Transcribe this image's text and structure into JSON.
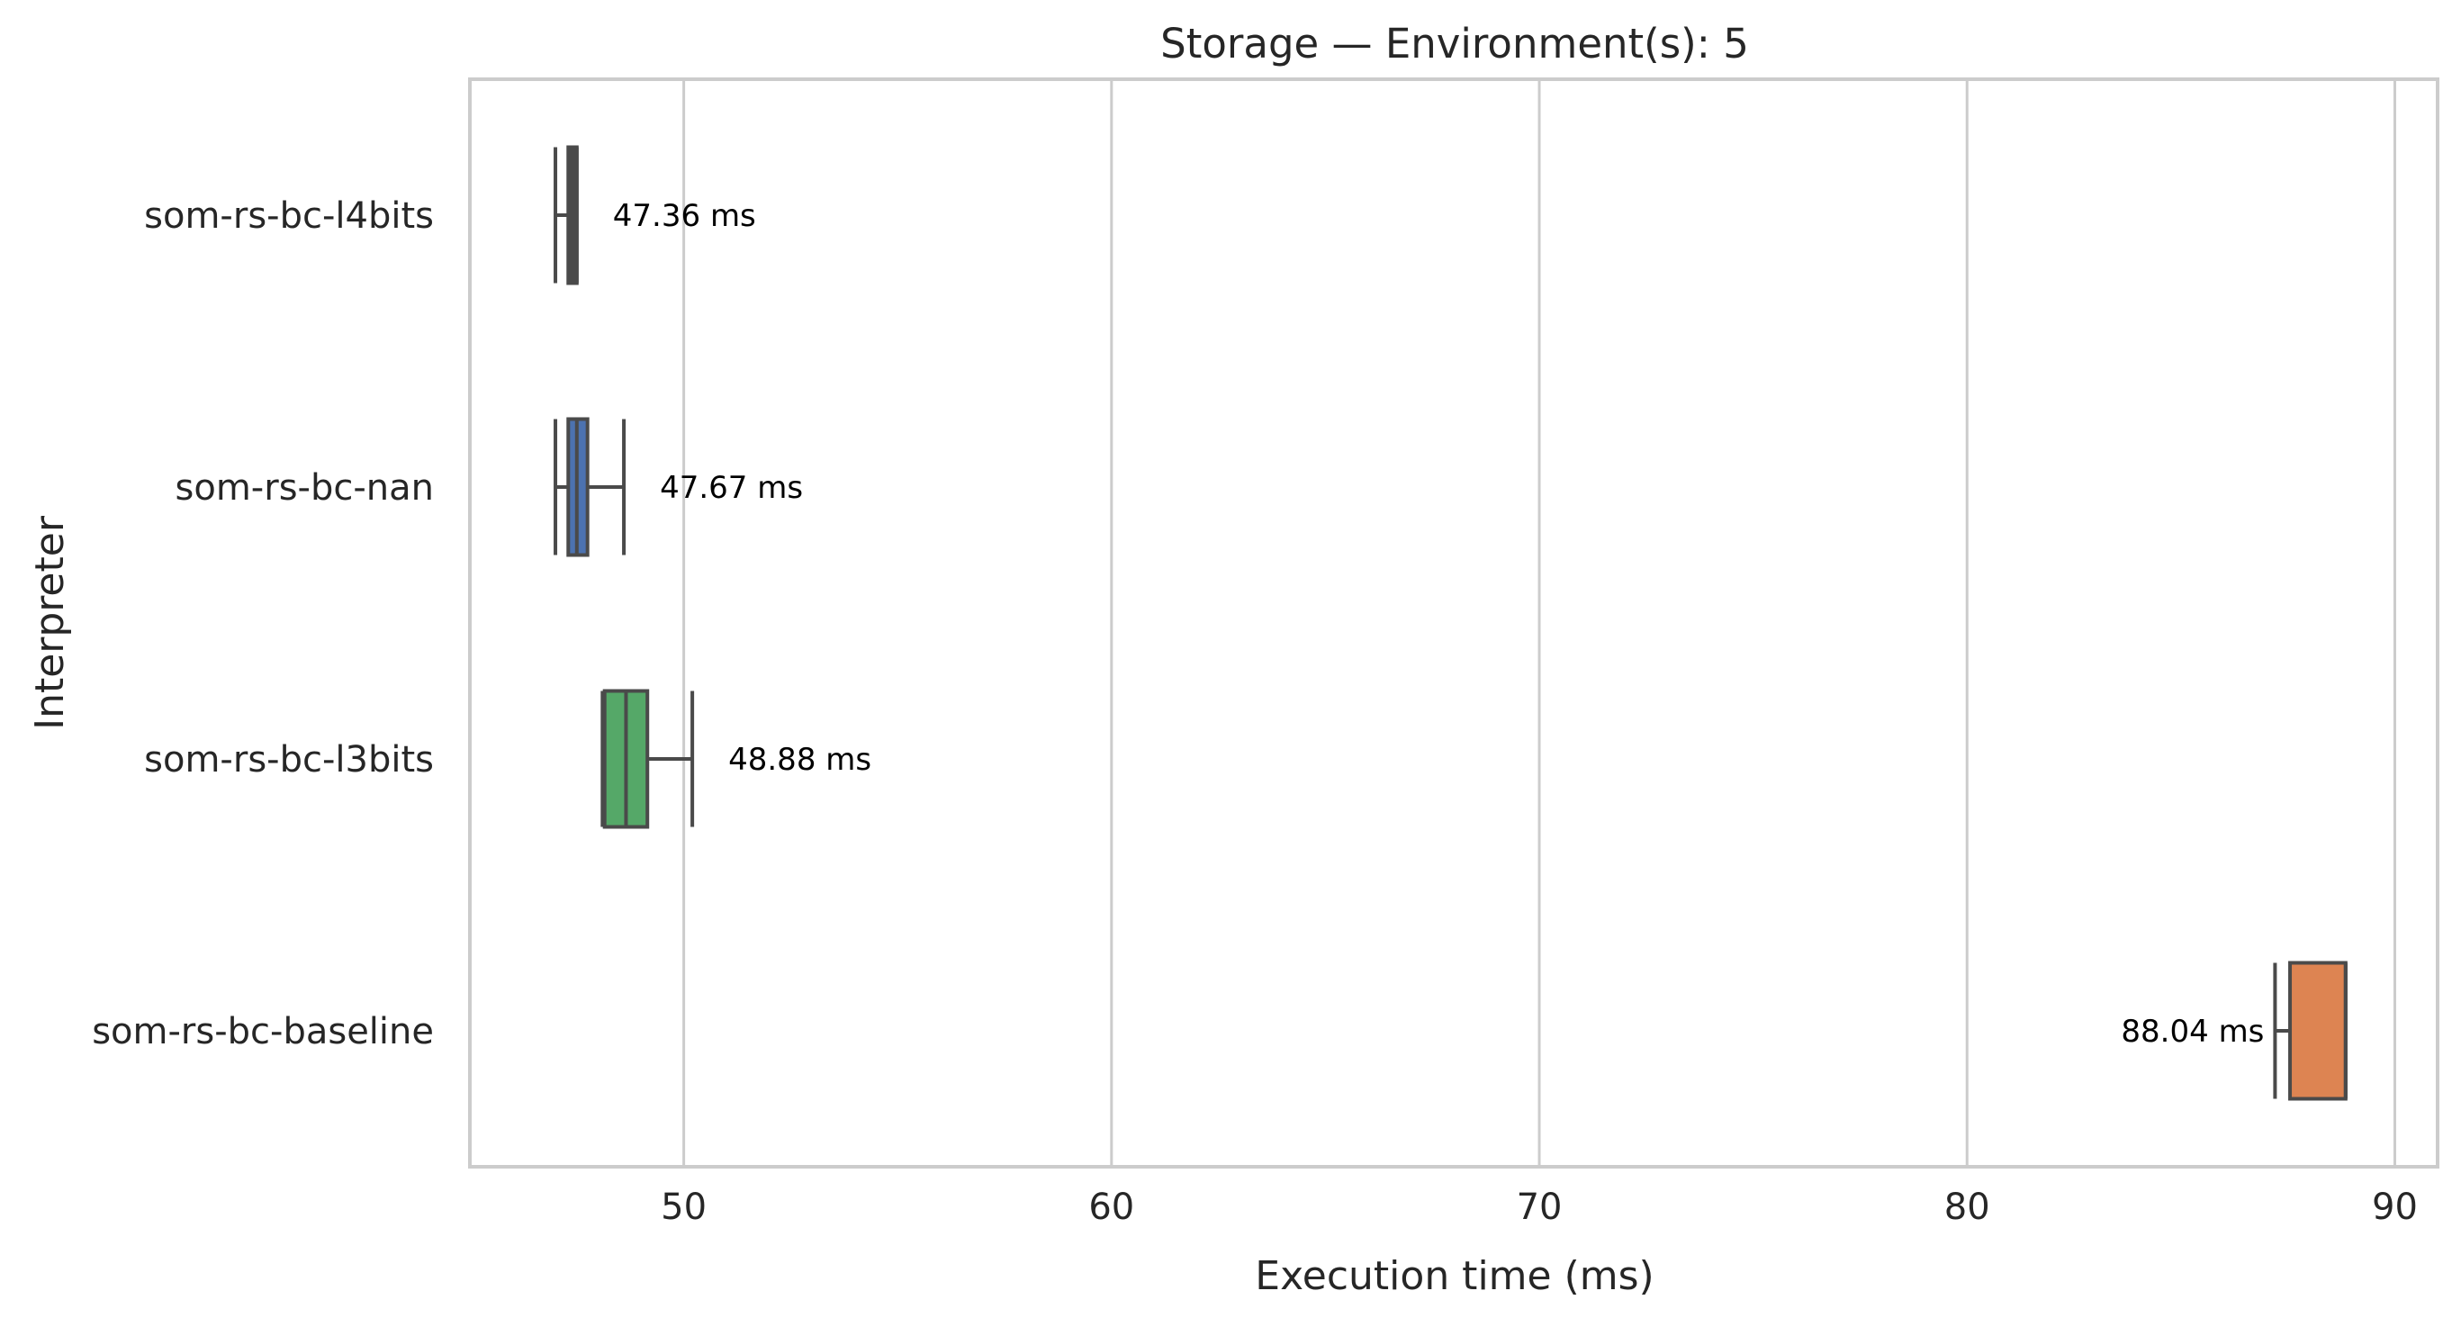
{
  "chart_data": {
    "type": "box",
    "orientation": "horizontal",
    "title": "Storage — Environment(s): 5",
    "xlabel": "Execution time (ms)",
    "ylabel": "Interpreter",
    "xlim": [
      45,
      91
    ],
    "xticks": [
      50,
      60,
      70,
      80,
      90
    ],
    "xtick_labels": [
      "50",
      "60",
      "70",
      "80",
      "90"
    ],
    "grid": "vertical",
    "legend": "none",
    "categories": [
      "som-rs-bc-l4bits",
      "som-rs-bc-nan",
      "som-rs-bc-l3bits",
      "som-rs-bc-baseline"
    ],
    "series": [
      {
        "category": "som-rs-bc-l4bits",
        "color": "#4a4a4a",
        "whisker_low": 47.0,
        "q1": 47.3,
        "median": 47.45,
        "q3": 47.5,
        "whisker_high": 47.5,
        "label": "47.36 ms"
      },
      {
        "category": "som-rs-bc-nan",
        "color": "#4c72b0",
        "whisker_low": 47.0,
        "q1": 47.3,
        "median": 47.5,
        "q3": 47.75,
        "whisker_high": 48.6,
        "label": "47.67 ms"
      },
      {
        "category": "som-rs-bc-l3bits",
        "color": "#55a868",
        "whisker_low": 48.1,
        "q1": 48.15,
        "median": 48.65,
        "q3": 49.15,
        "whisker_high": 50.2,
        "label": "48.88 ms"
      },
      {
        "category": "som-rs-bc-baseline",
        "color": "#dd8452",
        "whisker_low": 87.2,
        "q1": 87.55,
        "median": 88.85,
        "q3": 88.85,
        "whisker_high": 88.85,
        "label": "88.04 ms"
      }
    ]
  }
}
